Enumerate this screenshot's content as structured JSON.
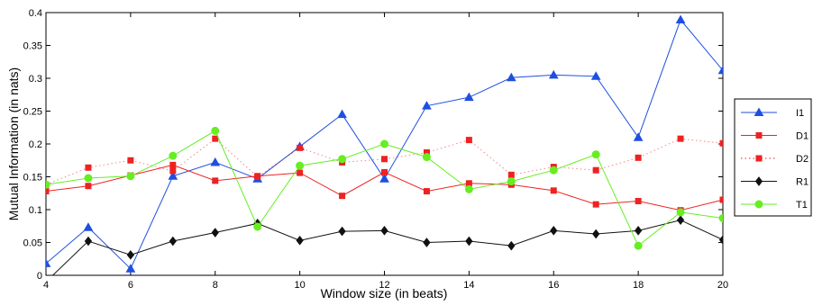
{
  "chart_data": {
    "type": "line",
    "xlabel": "Window size (in beats)",
    "ylabel": "Mutual Information (in nats)",
    "xlim": [
      4,
      20
    ],
    "ylim": [
      0,
      0.4
    ],
    "x_ticks": [
      "4",
      "6",
      "8",
      "10",
      "12",
      "14",
      "16",
      "18",
      "20"
    ],
    "y_ticks": [
      "0",
      "0.05",
      "0.1",
      "0.15",
      "0.2",
      "0.25",
      "0.3",
      "0.35",
      "0.4"
    ],
    "grid": false,
    "legend_position": "right",
    "x": [
      4,
      5,
      6,
      7,
      8,
      9,
      10,
      11,
      12,
      13,
      14,
      15,
      16,
      17,
      18,
      19,
      20
    ],
    "series": [
      {
        "name": "I1",
        "color": "#1f4fe0",
        "marker": "triangle",
        "line": "solid",
        "values": [
          0.018,
          0.073,
          0.01,
          0.151,
          0.172,
          0.147,
          0.196,
          0.245,
          0.147,
          0.258,
          0.271,
          0.301,
          0.305,
          0.303,
          0.21,
          0.389,
          0.312
        ]
      },
      {
        "name": "D1",
        "color": "#ee2222",
        "marker": "square",
        "line": "solid",
        "values": [
          0.128,
          0.136,
          0.152,
          0.168,
          0.144,
          0.151,
          0.156,
          0.121,
          0.157,
          0.128,
          0.14,
          0.138,
          0.129,
          0.108,
          0.113,
          0.099,
          0.115
        ]
      },
      {
        "name": "D2",
        "color": "#ee2222",
        "marker": "square",
        "line": "dotted",
        "values": [
          0.138,
          0.164,
          0.175,
          0.159,
          0.208,
          0.15,
          0.194,
          0.172,
          0.177,
          0.187,
          0.206,
          0.153,
          0.165,
          0.16,
          0.179,
          0.208,
          0.201
        ]
      },
      {
        "name": "R1",
        "color": "#111111",
        "marker": "diamond",
        "line": "solid",
        "values": [
          -0.01,
          0.052,
          0.031,
          0.052,
          0.065,
          0.079,
          0.053,
          0.067,
          0.068,
          0.05,
          0.052,
          0.045,
          0.068,
          0.063,
          0.068,
          0.084,
          0.054
        ]
      },
      {
        "name": "T1",
        "color": "#66ee22",
        "marker": "circle",
        "line": "solid",
        "values": [
          0.138,
          0.148,
          0.151,
          0.182,
          0.22,
          0.074,
          0.167,
          0.177,
          0.2,
          0.18,
          0.131,
          0.143,
          0.16,
          0.184,
          0.045,
          0.096,
          0.087
        ]
      }
    ]
  }
}
